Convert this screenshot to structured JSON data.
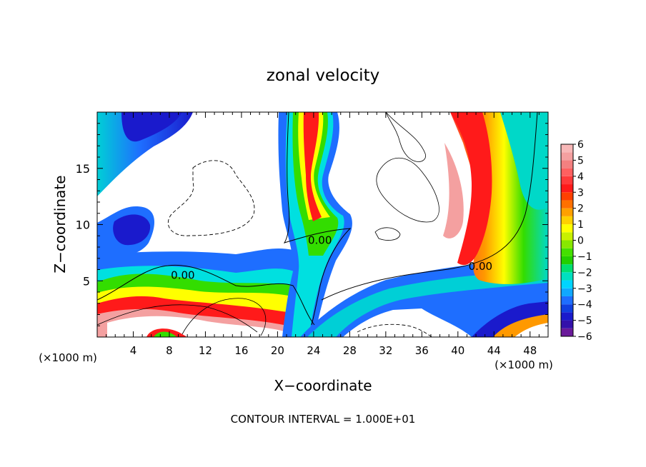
{
  "chart_data": {
    "type": "heatmap",
    "title": "zonal velocity",
    "xlabel": "X−coordinate",
    "ylabel": "Z−coordinate",
    "x_unit_left": "(×1000 m)",
    "x_unit_right": "(×1000 m)",
    "footer": "CONTOUR INTERVAL = 1.000E+01",
    "xlim": [
      0,
      50
    ],
    "ylim": [
      0,
      20
    ],
    "x_ticks": [
      4,
      8,
      12,
      16,
      20,
      24,
      28,
      32,
      36,
      40,
      44,
      48
    ],
    "y_ticks": [
      5,
      10,
      15
    ],
    "contour_labels": [
      {
        "text": "0.00",
        "x": 9.5,
        "y": 5.5
      },
      {
        "text": "0.00",
        "x": 24.7,
        "y": 8.6
      },
      {
        "text": "0.00",
        "x": 42.5,
        "y": 6.3
      }
    ],
    "colorbar": {
      "min": -6,
      "max": 6,
      "tick_labels": [
        "6",
        "5",
        "4",
        "3",
        "2",
        "1",
        "0",
        "−1",
        "−2",
        "−3",
        "−4",
        "−5",
        "−6"
      ]
    },
    "colors": {
      "pos_high": "#f4a0a0",
      "red": "#ff1a1a",
      "orange": "#ff9900",
      "yellow": "#ffff00",
      "green": "#33dd00",
      "cyan": "#00e5e5",
      "blue": "#1e6eff",
      "navy": "#1a1acc",
      "purple": "#7a1aa0"
    }
  }
}
